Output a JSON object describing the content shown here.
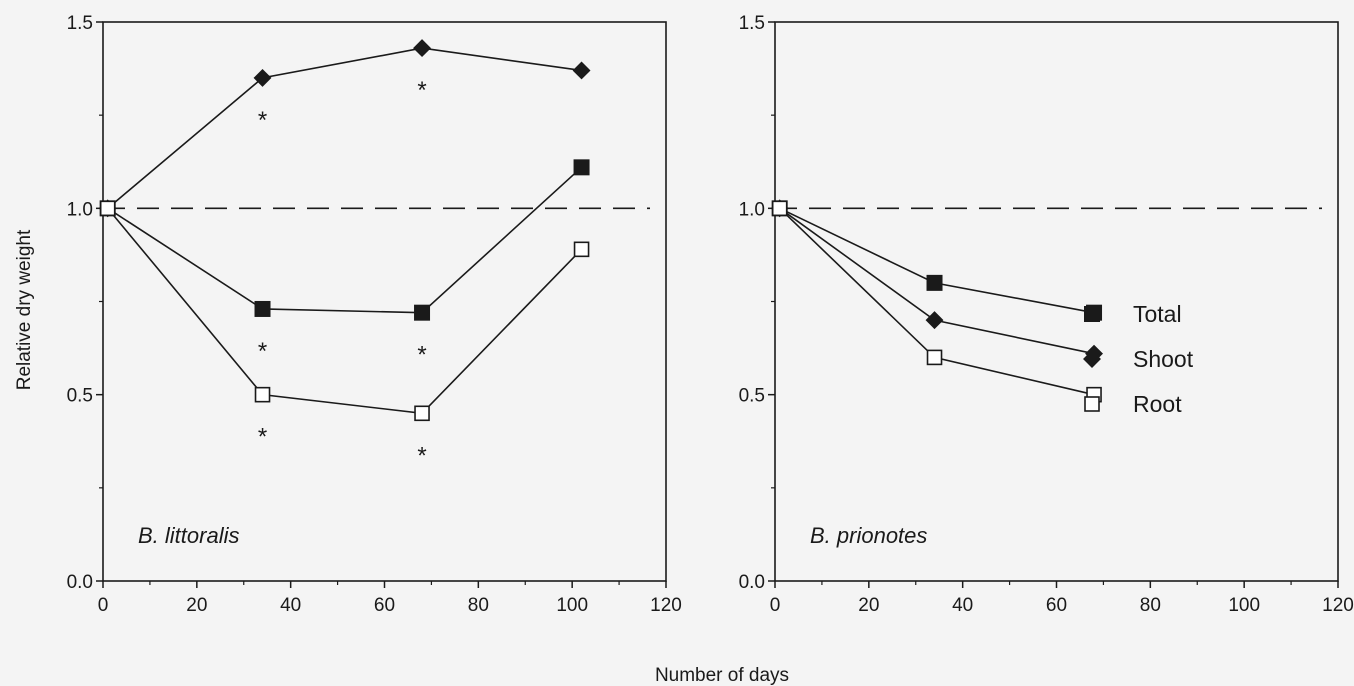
{
  "chart_data": {
    "type": "line",
    "xlabel": "Number of days",
    "ylabel": "Relative dry weight",
    "reference_line": {
      "y": 1.0,
      "style": "dashed"
    },
    "legend": {
      "placement": "right panel, right-center",
      "entries": [
        {
          "name": "Total",
          "marker": "filled-square"
        },
        {
          "name": "Shoot",
          "marker": "filled-diamond"
        },
        {
          "name": "Root",
          "marker": "open-square"
        }
      ]
    },
    "panels": [
      {
        "label": "B. littoralis",
        "xlim": [
          0,
          120
        ],
        "ylim": [
          0.0,
          1.5
        ],
        "x_ticks": [
          "0",
          "20",
          "40",
          "60",
          "80",
          "100",
          "120"
        ],
        "y_ticks": [
          "0.0",
          "0.5",
          "1.0",
          "1.5"
        ],
        "series": [
          {
            "name": "Shoot",
            "marker": "filled-diamond",
            "x": [
              1,
              34,
              68,
              102
            ],
            "y": [
              1.0,
              1.35,
              1.43,
              1.37
            ]
          },
          {
            "name": "Total",
            "marker": "filled-square",
            "x": [
              1,
              34,
              68,
              102
            ],
            "y": [
              1.0,
              0.73,
              0.72,
              1.11
            ]
          },
          {
            "name": "Root",
            "marker": "open-square",
            "x": [
              1,
              34,
              68,
              102
            ],
            "y": [
              1.0,
              0.5,
              0.45,
              0.89
            ]
          }
        ],
        "significance": [
          {
            "text": "*",
            "series": "Shoot",
            "x": 34
          },
          {
            "text": "*",
            "series": "Shoot",
            "x": 68
          },
          {
            "text": "*",
            "series": "Total",
            "x": 34
          },
          {
            "text": "*",
            "series": "Total",
            "x": 68
          },
          {
            "text": "*",
            "series": "Root",
            "x": 34
          },
          {
            "text": "*",
            "series": "Root",
            "x": 68
          }
        ]
      },
      {
        "label": "B. prionotes",
        "xlim": [
          0,
          120
        ],
        "ylim": [
          0.0,
          1.5
        ],
        "x_ticks": [
          "0",
          "20",
          "40",
          "60",
          "80",
          "100",
          "120"
        ],
        "y_ticks": [
          "0.0",
          "0.5",
          "1.0",
          "1.5"
        ],
        "series": [
          {
            "name": "Total",
            "marker": "filled-square",
            "x": [
              1,
              34,
              68
            ],
            "y": [
              1.0,
              0.8,
              0.72
            ]
          },
          {
            "name": "Shoot",
            "marker": "filled-diamond",
            "x": [
              1,
              34,
              68
            ],
            "y": [
              1.0,
              0.7,
              0.61
            ]
          },
          {
            "name": "Root",
            "marker": "open-square",
            "x": [
              1,
              34,
              68
            ],
            "y": [
              1.0,
              0.6,
              0.5
            ]
          }
        ],
        "significance": []
      }
    ],
    "colors": {
      "ink": "#1a1a1a",
      "background": "#f4f4f4",
      "open_marker_fill": "#ffffff"
    }
  }
}
